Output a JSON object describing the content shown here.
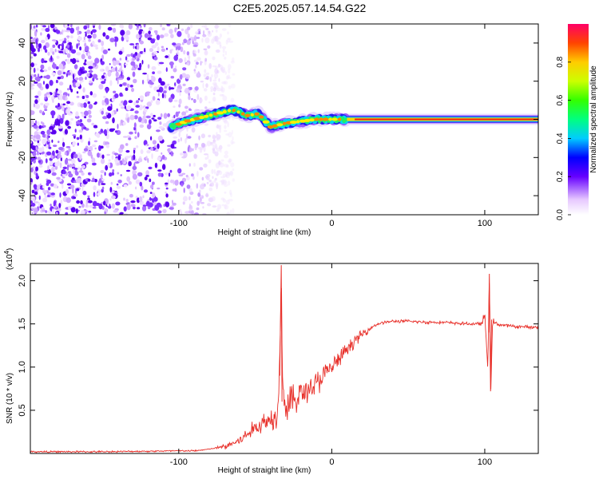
{
  "title": "C2E5.2025.057.14.54.G22",
  "chart_data": [
    {
      "type": "heatmap",
      "title": "C2E5.2025.057.14.54.G22",
      "xlabel": "Height of straight line (km)",
      "ylabel": "Frequency (Hz)",
      "xlim": [
        -197,
        135
      ],
      "ylim": [
        -50,
        50
      ],
      "xticks": [
        -100,
        0,
        100
      ],
      "xtick_labels": [
        "-100",
        "0",
        "100"
      ],
      "yticks": [
        -40,
        -20,
        0,
        20,
        40
      ],
      "ytick_labels": [
        "-40",
        "-20",
        "0",
        "20",
        "40"
      ],
      "colorbar": {
        "label": "Normalized spectral amplitude",
        "range": [
          0,
          1
        ],
        "ticks": [
          0.0,
          0.2,
          0.4,
          0.6,
          0.8
        ],
        "tick_labels": [
          "0.0",
          "0.2",
          "0.4",
          "0.6",
          "0.8"
        ]
      },
      "ridge": {
        "description_points_x": [
          -105,
          -95,
          -85,
          -75,
          -65,
          -55,
          -48,
          -40,
          -30,
          -20,
          -10,
          0,
          20,
          60,
          100,
          135
        ],
        "frequency_hz": [
          -4,
          -1,
          1,
          3,
          5,
          2,
          3,
          -4,
          -2,
          -1,
          0,
          0,
          0,
          0,
          0,
          0
        ],
        "amplitude": [
          0.15,
          0.4,
          0.5,
          0.55,
          0.6,
          0.55,
          0.5,
          0.55,
          0.65,
          0.7,
          0.75,
          0.85,
          0.9,
          0.95,
          0.9,
          0.9
        ]
      },
      "noise_region_x": [
        -197,
        -85
      ]
    },
    {
      "type": "line",
      "xlabel": "Height of straight line (km)",
      "ylabel": "SNR (10 * v/v)",
      "scale_label": "(x10",
      "scale_exp": "4",
      "scale_close": ")",
      "xlim": [
        -197,
        135
      ],
      "ylim": [
        0,
        2.2
      ],
      "xticks": [
        -100,
        0,
        100
      ],
      "xtick_labels": [
        "-100",
        "0",
        "100"
      ],
      "yticks": [
        0.5,
        1.0,
        1.5,
        2.0
      ],
      "ytick_labels": [
        "0.5",
        "1.0",
        "1.5",
        "2.0"
      ],
      "series": [
        {
          "name": "SNR",
          "color": "#e8302a",
          "x": [
            -197,
            -150,
            -100,
            -90,
            -80,
            -70,
            -60,
            -50,
            -45,
            -40,
            -36,
            -34,
            -33,
            -32,
            -30,
            -25,
            -20,
            -10,
            -5,
            0,
            5,
            10,
            15,
            20,
            25,
            30,
            35,
            40,
            50,
            60,
            70,
            80,
            90,
            98,
            100,
            102,
            103,
            104,
            105,
            110,
            120,
            135
          ],
          "y": [
            0.02,
            0.02,
            0.03,
            0.03,
            0.05,
            0.08,
            0.15,
            0.3,
            0.35,
            0.4,
            0.45,
            1.0,
            2.15,
            0.7,
            0.55,
            0.6,
            0.7,
            0.8,
            0.9,
            1.0,
            1.1,
            1.2,
            1.3,
            1.38,
            1.45,
            1.5,
            1.52,
            1.53,
            1.53,
            1.52,
            1.52,
            1.51,
            1.5,
            1.5,
            1.6,
            1.0,
            2.0,
            0.72,
            1.52,
            1.49,
            1.47,
            1.46
          ]
        }
      ]
    }
  ]
}
